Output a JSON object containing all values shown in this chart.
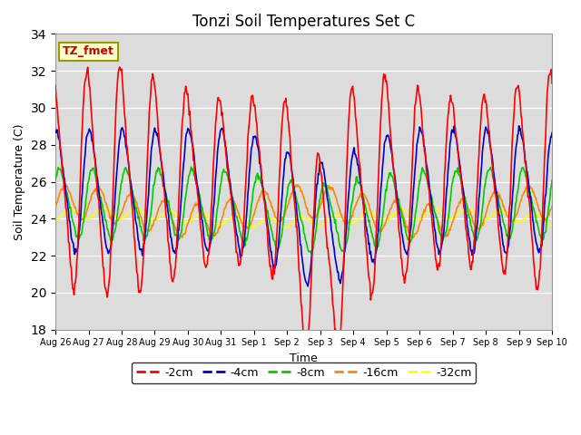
{
  "title": "Tonzi Soil Temperatures Set C",
  "xlabel": "Time",
  "ylabel": "Soil Temperature (C)",
  "ylim": [
    18,
    34
  ],
  "yticks": [
    18,
    20,
    22,
    24,
    26,
    28,
    30,
    32,
    34
  ],
  "line_colors": {
    "-2cm": "#ff0000",
    "-4cm": "#0000cc",
    "-8cm": "#00cc00",
    "-16cm": "#ff8800",
    "-32cm": "#ffff00"
  },
  "legend_label": "TZ_fmet",
  "bg_color": "#dcdcdc",
  "fig_bg": "#ffffff",
  "linewidth": 1.2,
  "x_tick_labels": [
    "Aug 26",
    "Aug 27",
    "Aug 28",
    "Aug 29",
    "Aug 30",
    "Aug 31",
    "Sep 1",
    "Sep 2",
    "Sep 3",
    "Sep 4",
    "Sep 5",
    "Sep 6",
    "Sep 7",
    "Sep 8",
    "Sep 9",
    "Sep 10"
  ],
  "n_days": 15
}
